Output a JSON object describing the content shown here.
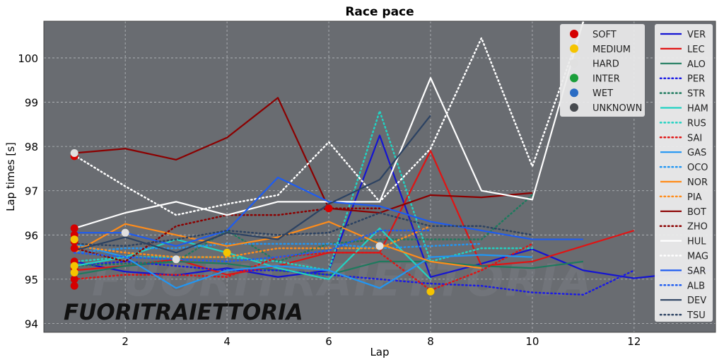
{
  "chart_data": {
    "type": "line",
    "title": "Race pace",
    "xlabel": "Lap",
    "ylabel": "Lap times [s]",
    "xlim": [
      0.4,
      13.6
    ],
    "ylim": [
      93.8,
      100.83
    ],
    "xticks": [
      2,
      4,
      6,
      8,
      10,
      12
    ],
    "yticks": [
      94,
      95,
      96,
      97,
      98,
      99,
      100
    ],
    "grid": true,
    "legend_placement": "top-right",
    "watermark": "FUORITRAIETTORIA",
    "tyre_legend": [
      {
        "name": "SOFT",
        "color": "#d50000"
      },
      {
        "name": "MEDIUM",
        "color": "#f5c400"
      },
      {
        "name": "HARD",
        "color": "#e0e0e0"
      },
      {
        "name": "INTER",
        "color": "#1a9e3a"
      },
      {
        "name": "WET",
        "color": "#2a6cc4"
      },
      {
        "name": "UNKNOWN",
        "color": "#474a4f"
      }
    ],
    "series": [
      {
        "name": "VER",
        "color": "#1414d2",
        "style": "solid",
        "x": [
          1,
          2,
          3,
          4,
          5,
          6,
          7,
          8,
          9,
          10,
          11,
          12,
          13,
          13.5
        ],
        "y": [
          95.4,
          95.17,
          95.09,
          95.25,
          95.05,
          95.2,
          98.25,
          95.05,
          95.35,
          95.68,
          95.2,
          95.02,
          95.15,
          95.2
        ]
      },
      {
        "name": "LEC",
        "color": "#e01414",
        "style": "solid",
        "x": [
          1,
          2,
          3,
          4,
          5,
          6,
          7,
          8,
          9,
          10,
          11,
          12
        ],
        "y": [
          95.2,
          95.3,
          95.45,
          95.1,
          95.3,
          95.6,
          95.6,
          97.9,
          95.3,
          95.4,
          95.75,
          96.1
        ]
      },
      {
        "name": "ALO",
        "color": "#1e7a5e",
        "style": "solid",
        "x": [
          1,
          2,
          3,
          4,
          5,
          6,
          7,
          8,
          9,
          10,
          11
        ],
        "y": [
          95.1,
          95.3,
          95.4,
          95.35,
          95.2,
          95.1,
          95.4,
          95.4,
          95.3,
          95.25,
          95.4
        ]
      },
      {
        "name": "PER",
        "color": "#1a1ae6",
        "style": "dotted",
        "x": [
          1,
          2,
          3,
          4,
          5,
          6,
          7,
          8,
          9,
          10,
          11,
          12
        ],
        "y": [
          95.3,
          95.4,
          95.3,
          95.2,
          95.2,
          95.1,
          95.0,
          94.9,
          94.85,
          94.7,
          94.65,
          95.2
        ]
      },
      {
        "name": "STR",
        "color": "#1e7a5e",
        "style": "dotted",
        "x": [
          1,
          2,
          3,
          4,
          5,
          6,
          7,
          8,
          9,
          10
        ],
        "y": [
          95.3,
          95.35,
          95.4,
          96.1,
          95.4,
          95.8,
          95.9,
          95.9,
          95.9,
          96.9
        ]
      },
      {
        "name": "HAM",
        "color": "#22d2c2",
        "style": "solid",
        "x": [
          1,
          2,
          3,
          4,
          5,
          6,
          7,
          8
        ],
        "y": [
          95.3,
          95.5,
          95.9,
          95.6,
          95.25,
          95.0,
          96.15,
          95.0
        ]
      },
      {
        "name": "RUS",
        "color": "#22d2c2",
        "style": "dotted",
        "x": [
          1,
          2,
          3,
          4,
          5,
          6,
          7,
          8,
          9,
          10
        ],
        "y": [
          95.4,
          95.5,
          95.5,
          95.5,
          95.4,
          95.2,
          98.8,
          95.4,
          95.7,
          95.7
        ]
      },
      {
        "name": "SAI",
        "color": "#e01414",
        "style": "dotted",
        "x": [
          1,
          2,
          3,
          4,
          5,
          6,
          7,
          8,
          9,
          10
        ],
        "y": [
          95.0,
          95.1,
          95.1,
          95.05,
          95.5,
          95.6,
          95.6,
          94.75,
          95.2,
          95.8
        ]
      },
      {
        "name": "GAS",
        "color": "#2196f3",
        "style": "solid",
        "x": [
          1,
          2,
          3,
          4,
          5,
          6,
          7,
          8,
          9,
          10
        ],
        "y": [
          95.8,
          95.5,
          94.8,
          95.2,
          95.3,
          95.2,
          94.8,
          95.5,
          95.55,
          95.5
        ]
      },
      {
        "name": "OCO",
        "color": "#2196f3",
        "style": "dotted",
        "x": [
          1,
          2,
          3,
          4,
          5,
          6,
          7,
          8,
          9
        ],
        "y": [
          95.6,
          95.7,
          95.7,
          95.8,
          95.8,
          95.8,
          95.7,
          95.75,
          95.8
        ]
      },
      {
        "name": "NOR",
        "color": "#ff8c1a",
        "style": "solid",
        "x": [
          1,
          2,
          3,
          4,
          5,
          6,
          7,
          8,
          9
        ],
        "y": [
          95.6,
          96.25,
          96.0,
          95.75,
          95.95,
          96.3,
          95.8,
          95.4,
          95.25
        ]
      },
      {
        "name": "PIA",
        "color": "#ff8c1a",
        "style": "dotted",
        "x": [
          1,
          2,
          3,
          4,
          5,
          6,
          7,
          8
        ],
        "y": [
          95.75,
          95.6,
          95.5,
          95.5,
          95.7,
          95.7,
          95.7,
          96.2
        ]
      },
      {
        "name": "BOT",
        "color": "#8b0000",
        "style": "solid",
        "x": [
          1,
          2,
          3,
          4,
          5,
          6,
          7,
          8,
          9,
          10
        ],
        "y": [
          97.85,
          97.95,
          97.7,
          98.2,
          99.1,
          96.6,
          96.5,
          96.9,
          96.85,
          96.95
        ]
      },
      {
        "name": "ZHO",
        "color": "#8b0000",
        "style": "dotted",
        "x": [
          1,
          2,
          3,
          4,
          5,
          6,
          7
        ],
        "y": [
          95.7,
          95.4,
          96.2,
          96.45,
          96.45,
          96.6,
          96.6
        ]
      },
      {
        "name": "HUL",
        "color": "#ffffff",
        "style": "solid",
        "x": [
          1,
          2,
          3,
          4,
          5,
          6,
          7,
          8,
          9,
          10,
          11
        ],
        "y": [
          96.15,
          96.5,
          96.75,
          96.45,
          96.75,
          96.75,
          96.75,
          99.55,
          97.0,
          96.8,
          100.9
        ]
      },
      {
        "name": "MAG",
        "color": "#ffffff",
        "style": "dotted",
        "x": [
          1,
          2,
          3,
          4,
          5,
          6,
          7,
          8,
          9,
          10,
          11
        ],
        "y": [
          97.8,
          97.1,
          96.45,
          96.7,
          96.9,
          98.1,
          96.75,
          97.95,
          100.45,
          97.55,
          100.8
        ]
      },
      {
        "name": "SAR",
        "color": "#1e5cf0",
        "style": "solid",
        "x": [
          1,
          2,
          3,
          4,
          5,
          6,
          7,
          8,
          9,
          10,
          11
        ],
        "y": [
          96.05,
          96.05,
          95.75,
          96.1,
          97.3,
          96.75,
          96.65,
          96.3,
          96.1,
          95.9,
          95.9
        ]
      },
      {
        "name": "ALB",
        "color": "#1e5cf0",
        "style": "dotted",
        "x": [
          1,
          2,
          3,
          4,
          5,
          6,
          7,
          8
        ],
        "y": [
          95.6,
          95.5,
          95.45,
          95.4,
          95.5,
          95.65,
          96.1,
          96.1
        ]
      },
      {
        "name": "DEV",
        "color": "#2c4262",
        "style": "solid",
        "x": [
          1,
          2,
          3,
          4,
          5,
          6,
          7,
          8
        ],
        "y": [
          95.65,
          95.95,
          95.6,
          96.05,
          95.9,
          96.7,
          97.25,
          98.7
        ]
      },
      {
        "name": "TSU",
        "color": "#2c4262",
        "style": "dotted",
        "x": [
          1,
          2,
          3,
          4,
          5,
          6,
          7,
          8,
          9,
          10
        ],
        "y": [
          95.8,
          95.75,
          95.9,
          96.1,
          96.0,
          96.05,
          96.5,
          96.2,
          96.2,
          96.0
        ]
      }
    ],
    "tyre_points": [
      {
        "compound": "SOFT",
        "x": 1,
        "y": 97.78
      },
      {
        "compound": "SOFT",
        "x": 1,
        "y": 96.15
      },
      {
        "compound": "SOFT",
        "x": 1,
        "y": 96.0
      },
      {
        "compound": "SOFT",
        "x": 1,
        "y": 95.85
      },
      {
        "compound": "SOFT",
        "x": 1,
        "y": 95.7
      },
      {
        "compound": "SOFT",
        "x": 1,
        "y": 95.4
      },
      {
        "compound": "SOFT",
        "x": 1,
        "y": 95.25
      },
      {
        "compound": "SOFT",
        "x": 1,
        "y": 95.0
      },
      {
        "compound": "SOFT",
        "x": 1,
        "y": 94.85
      },
      {
        "compound": "HARD",
        "x": 1,
        "y": 97.85
      },
      {
        "compound": "MEDIUM",
        "x": 1,
        "y": 95.9
      },
      {
        "compound": "MEDIUM",
        "x": 1,
        "y": 95.3
      },
      {
        "compound": "MEDIUM",
        "x": 1,
        "y": 95.15
      },
      {
        "compound": "HARD",
        "x": 2,
        "y": 96.05
      },
      {
        "compound": "HARD",
        "x": 3,
        "y": 95.45
      },
      {
        "compound": "MEDIUM",
        "x": 4,
        "y": 95.6
      },
      {
        "compound": "SOFT",
        "x": 6,
        "y": 96.6
      },
      {
        "compound": "HARD",
        "x": 7,
        "y": 95.75
      },
      {
        "compound": "MEDIUM",
        "x": 8,
        "y": 94.72
      }
    ]
  }
}
